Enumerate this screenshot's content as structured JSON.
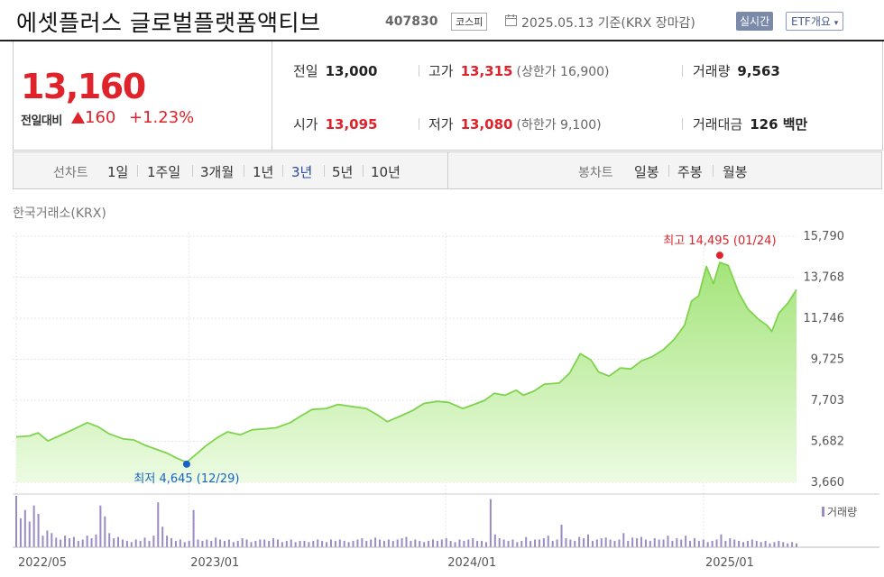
{
  "header": {
    "name": "에셋플러스 글로벌플랫폼액티브",
    "code": "407830",
    "market": "코스피",
    "date": "2025.05.13 기준(KRX 장마감)",
    "realtime_btn": "실시간",
    "etf_btn": "ETF개요"
  },
  "price": {
    "current": "13,160",
    "change_label": "전일대비",
    "change_icon": "up-triangle-icon",
    "change": "160",
    "change_pct": "+1.23%"
  },
  "quote": {
    "prev_label": "전일",
    "prev": "13,000",
    "high_label": "고가",
    "high": "13,315",
    "upper_limit": "(상한가 16,900)",
    "volume_label": "거래량",
    "volume": "9,563",
    "open_label": "시가",
    "open": "13,095",
    "low_label": "저가",
    "low": "13,080",
    "lower_limit": "(하한가 9,100)",
    "amount_label": "거래대금",
    "amount": "126 백만"
  },
  "period_bar": {
    "line_label": "선차트",
    "periods": [
      "1일",
      "1주일",
      "3개월",
      "1년",
      "3년",
      "5년",
      "10년"
    ],
    "selected": "3년",
    "candle_label": "봉차트",
    "candles": [
      "일봉",
      "주봉",
      "월봉"
    ]
  },
  "exchange_label": "한국거래소(KRX)",
  "colors": {
    "up_red": "#e0222a",
    "line_green": "#7fd34e",
    "area_green": "#b8ec96",
    "volume_purple": "#9b8bc4",
    "low_blue": "#1a62c8",
    "selected_blue": "#2a4a9c"
  },
  "chart_data": {
    "type": "area",
    "y_ticks": [
      "15,790",
      "13,768",
      "11,746",
      "9,725",
      "7,703",
      "5,682",
      "3,660"
    ],
    "ylim": [
      3660,
      15790
    ],
    "x_ticks": [
      "2022/05",
      "2023/01",
      "2024/01",
      "2025/01"
    ],
    "x_tick_dates": [
      "2022-05-01",
      "2023-01-01",
      "2024-01-01",
      "2025-01-01"
    ],
    "x_range": [
      "2022-05-01",
      "2025-05-13"
    ],
    "high_annotation": "최고 14,495 (01/24)",
    "low_annotation": "최저 4,645 (12/29)",
    "high_point": {
      "x": "2025-01-24",
      "y": 14495
    },
    "low_point": {
      "x": "2022-12-29",
      "y": 4645
    },
    "volume_label": "거래량",
    "series": [
      {
        "x": [
          "2022-05-01",
          "2022-05-20",
          "2022-06-01",
          "2022-06-15",
          "2022-07-01",
          "2022-07-20",
          "2022-08-10",
          "2022-08-25",
          "2022-09-10",
          "2022-09-30",
          "2022-10-15",
          "2022-10-30",
          "2022-11-15",
          "2022-12-01",
          "2022-12-15",
          "2022-12-29",
          "2023-01-10",
          "2023-01-25",
          "2023-02-10",
          "2023-02-25",
          "2023-03-15",
          "2023-04-01",
          "2023-04-20",
          "2023-05-05",
          "2023-05-25",
          "2023-06-10",
          "2023-06-25",
          "2023-07-15",
          "2023-08-01",
          "2023-08-20",
          "2023-09-10",
          "2023-09-25",
          "2023-10-10",
          "2023-10-30",
          "2023-11-15",
          "2023-12-01",
          "2023-12-20",
          "2024-01-05",
          "2024-01-25",
          "2024-02-10",
          "2024-02-25",
          "2024-03-10",
          "2024-03-25",
          "2024-04-10",
          "2024-04-20",
          "2024-05-05",
          "2024-05-20",
          "2024-06-10",
          "2024-06-25",
          "2024-07-10",
          "2024-07-25",
          "2024-08-05",
          "2024-08-20",
          "2024-09-05",
          "2024-09-20",
          "2024-10-05",
          "2024-10-20",
          "2024-11-05",
          "2024-11-20",
          "2024-12-05",
          "2024-12-15",
          "2024-12-25",
          "2025-01-05",
          "2025-01-15",
          "2025-01-24",
          "2025-02-05",
          "2025-02-20",
          "2025-03-05",
          "2025-03-20",
          "2025-04-01",
          "2025-04-08",
          "2025-04-18",
          "2025-05-01",
          "2025-05-13"
        ],
        "values": [
          5900,
          5950,
          6100,
          5700,
          5950,
          6250,
          6600,
          6400,
          6050,
          5800,
          5750,
          5500,
          5300,
          5100,
          4850,
          4645,
          5000,
          5450,
          5850,
          6150,
          6000,
          6250,
          6300,
          6350,
          6600,
          6950,
          7250,
          7300,
          7500,
          7400,
          7300,
          7000,
          6650,
          6950,
          7200,
          7550,
          7650,
          7600,
          7300,
          7500,
          7700,
          8050,
          7950,
          8200,
          7950,
          8150,
          8500,
          8550,
          9050,
          10000,
          9700,
          9100,
          8900,
          9300,
          9250,
          9650,
          9850,
          10200,
          10700,
          11400,
          12600,
          12850,
          14300,
          13450,
          14495,
          14350,
          13000,
          12200,
          11700,
          11400,
          11100,
          12000,
          12500,
          13160
        ]
      }
    ],
    "volume": {
      "x_range": [
        "2022-05-01",
        "2025-05-13"
      ],
      "values": [
        80,
        45,
        58,
        40,
        65,
        52,
        18,
        26,
        22,
        15,
        12,
        18,
        14,
        16,
        10,
        12,
        18,
        14,
        20,
        65,
        48,
        22,
        14,
        16,
        12,
        10,
        8,
        12,
        10,
        15,
        10,
        18,
        70,
        32,
        18,
        14,
        10,
        12,
        8,
        10,
        58,
        12,
        10,
        12,
        10,
        15,
        12,
        10,
        12,
        8,
        10,
        14,
        12,
        8,
        10,
        12,
        12,
        10,
        14,
        12,
        8,
        10,
        12,
        8,
        10,
        10,
        8,
        10,
        12,
        10,
        8,
        12,
        10,
        12,
        10,
        8,
        10,
        12,
        14,
        10,
        12,
        15,
        12,
        10,
        12,
        10,
        12,
        14,
        16,
        10,
        12,
        10,
        8,
        10,
        12,
        10,
        12,
        14,
        10,
        8,
        12,
        10,
        12,
        14,
        10,
        10,
        8,
        75,
        20,
        14,
        12,
        10,
        12,
        8,
        10,
        16,
        10,
        12,
        12,
        14,
        18,
        10,
        12,
        35,
        14,
        12,
        10,
        16,
        14,
        20,
        10,
        12,
        14,
        15,
        12,
        10,
        12,
        22,
        10,
        15,
        14,
        16,
        12,
        10,
        14,
        12,
        12,
        18,
        10,
        14,
        12,
        18,
        10,
        14,
        10,
        12,
        8,
        10,
        12,
        20,
        10,
        14,
        12,
        10,
        8,
        10,
        12,
        10,
        8,
        10,
        6,
        8,
        10,
        8,
        6,
        8,
        6
      ]
    }
  }
}
